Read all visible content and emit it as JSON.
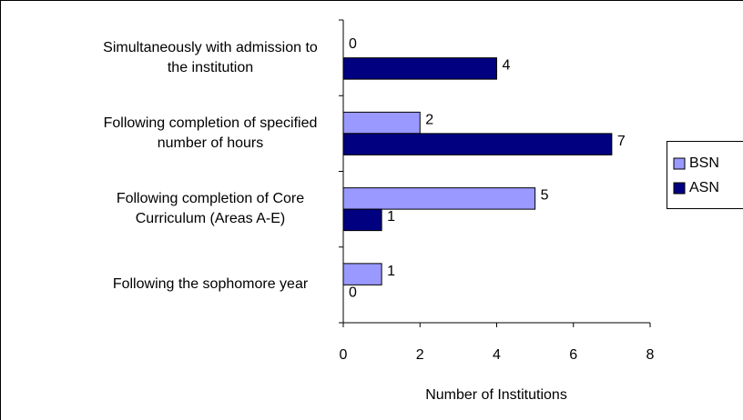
{
  "chart_data": {
    "type": "bar",
    "orientation": "horizontal",
    "categories": [
      "Simultaneously with admission to the institution",
      "Following completion of specified number of hours",
      "Following completion of Core Curriculum (Areas A-E)",
      "Following the sophomore year"
    ],
    "series": [
      {
        "name": "BSN",
        "color": "#9999ff",
        "values": [
          0,
          2,
          5,
          1
        ]
      },
      {
        "name": "ASN",
        "color": "#000080",
        "values": [
          4,
          7,
          1,
          0
        ]
      }
    ],
    "x_label": "Number of Institutions",
    "xlim": [
      0,
      8
    ],
    "xticks": [
      0,
      2,
      4,
      6,
      8
    ],
    "legend": "right"
  }
}
